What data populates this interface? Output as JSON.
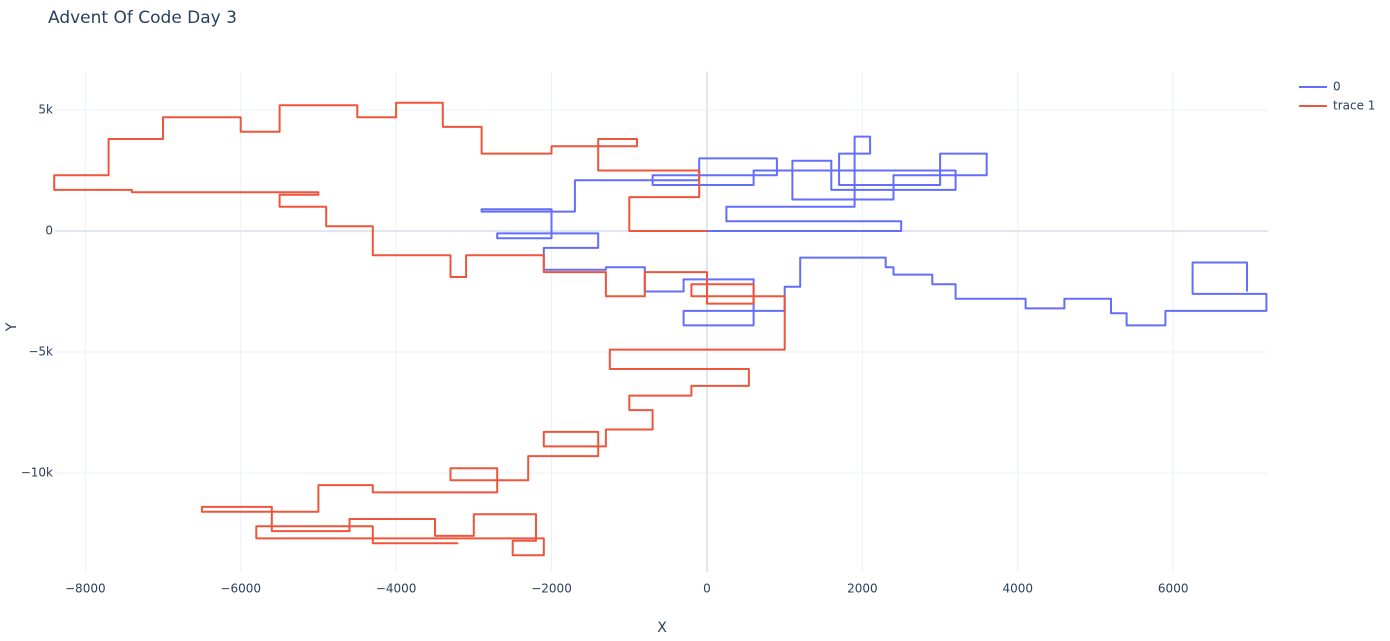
{
  "chart_data": {
    "type": "line",
    "title": "Advent Of Code Day 3",
    "x_label": "X",
    "y_label": "Y",
    "xlim": [
      -8390,
      7220
    ],
    "ylim": [
      -14090,
      6570
    ],
    "xticks": [
      {
        "value": -8000,
        "label": "−8000"
      },
      {
        "value": -6000,
        "label": "−6000"
      },
      {
        "value": -4000,
        "label": "−4000"
      },
      {
        "value": -2000,
        "label": "−2000"
      },
      0,
      2000,
      4000,
      6000
    ],
    "yticks": [
      {
        "value": -10000,
        "label": "−10k"
      },
      {
        "value": -5000,
        "label": "−5k"
      },
      0,
      {
        "value": 5000,
        "label": "5k"
      }
    ],
    "grid": true,
    "legend": "top-right",
    "series": [
      {
        "name": "0",
        "color": "#636efa",
        "x": [
          0,
          2500,
          2500,
          250,
          250,
          1900,
          1900,
          2100,
          2100,
          1700,
          1700,
          3000,
          3000,
          3600,
          3600,
          2400,
          2400,
          1100,
          1100,
          1600,
          1600,
          3200,
          3200,
          600,
          600,
          -700,
          -700,
          900,
          900,
          -100,
          -100,
          -1700,
          -1700,
          -2900,
          -2900,
          -2000,
          -2000,
          -2700,
          -2700,
          -1400,
          -1400,
          -2100,
          -2100,
          -1300,
          -1300,
          -800,
          -800,
          -300,
          -300,
          600,
          600,
          -300,
          -300,
          1000,
          1000,
          1200,
          1200,
          2300,
          2300,
          2400,
          2400,
          2900,
          2900,
          3200,
          3200,
          4100,
          4100,
          4600,
          4600,
          5200,
          5200,
          5400,
          5400,
          5900,
          5900,
          7200,
          7200,
          6250,
          6250,
          6950,
          6950
        ],
        "y": [
          0,
          0,
          400,
          400,
          1000,
          1000,
          3900,
          3900,
          3200,
          3200,
          1900,
          1900,
          3200,
          3200,
          2300,
          2300,
          1300,
          1300,
          2900,
          2900,
          1700,
          1700,
          2500,
          2500,
          1900,
          1900,
          2300,
          2300,
          3000,
          3000,
          2100,
          2100,
          800,
          800,
          900,
          900,
          -300,
          -300,
          -100,
          -100,
          -700,
          -700,
          -1600,
          -1600,
          -1500,
          -1500,
          -2500,
          -2500,
          -2000,
          -2000,
          -3900,
          -3900,
          -3300,
          -3300,
          -2300,
          -2300,
          -1100,
          -1100,
          -1500,
          -1500,
          -1800,
          -1800,
          -2200,
          -2200,
          -2800,
          -2800,
          -3200,
          -3200,
          -2800,
          -2800,
          -3400,
          -3400,
          -3900,
          -3900,
          -3300,
          -3300,
          -2600,
          -2600,
          -1300,
          -1300,
          -2500
        ]
      },
      {
        "name": "trace 1",
        "color": "#EF553B",
        "x": [
          0,
          -1000,
          -1000,
          -100,
          -100,
          -1400,
          -1400,
          -900,
          -900,
          -2000,
          -2000,
          -2900,
          -2900,
          -3400,
          -3400,
          -4000,
          -4000,
          -4500,
          -4500,
          -5500,
          -5500,
          -6000,
          -6000,
          -7000,
          -7000,
          -7700,
          -7700,
          -8400,
          -8400,
          -7400,
          -7400,
          -5000,
          -5000,
          -5500,
          -5500,
          -4900,
          -4900,
          -4300,
          -4300,
          -3300,
          -3300,
          -3100,
          -3100,
          -2100,
          -2100,
          -1300,
          -1300,
          -800,
          -800,
          0,
          0,
          600,
          600,
          -200,
          -200,
          1000,
          1000,
          -1250,
          -1250,
          540,
          540,
          -200,
          -200,
          -1000,
          -1000,
          -700,
          -700,
          -1300,
          -1300,
          -2100,
          -2100,
          -1400,
          -1400,
          -2300,
          -2300,
          -3300,
          -3300,
          -2700,
          -2700,
          -4300,
          -4300,
          -5000,
          -5000,
          -6500,
          -6500,
          -5600,
          -5600,
          -4600,
          -4600,
          -3500,
          -3500,
          -3000,
          -3000,
          -2200,
          -2200,
          -2500,
          -2500,
          -2100,
          -2100,
          -5800,
          -5800,
          -4300,
          -4300,
          -3200
        ],
        "y": [
          0,
          0,
          1400,
          1400,
          2500,
          2500,
          3800,
          3800,
          3500,
          3500,
          3200,
          3200,
          4300,
          4300,
          5300,
          5300,
          4700,
          4700,
          5200,
          5200,
          4100,
          4100,
          4700,
          4700,
          3800,
          3800,
          2300,
          2300,
          1700,
          1700,
          1600,
          1600,
          1500,
          1500,
          1000,
          1000,
          200,
          200,
          -1000,
          -1000,
          -1900,
          -1900,
          -1000,
          -1000,
          -1700,
          -1700,
          -2700,
          -2700,
          -1700,
          -1700,
          -3000,
          -3000,
          -2200,
          -2200,
          -2700,
          -2700,
          -4900,
          -4900,
          -5700,
          -5700,
          -6400,
          -6400,
          -6800,
          -6800,
          -7400,
          -7400,
          -8200,
          -8200,
          -8900,
          -8900,
          -8300,
          -8300,
          -9300,
          -9300,
          -10300,
          -10300,
          -9800,
          -9800,
          -10800,
          -10800,
          -10500,
          -10500,
          -11600,
          -11600,
          -11400,
          -11400,
          -12400,
          -12400,
          -11900,
          -11900,
          -12600,
          -12600,
          -11700,
          -11700,
          -12800,
          -12800,
          -13400,
          -13400,
          -12700,
          -12700,
          -12200,
          -12200,
          -12900,
          -12900
        ]
      }
    ]
  }
}
